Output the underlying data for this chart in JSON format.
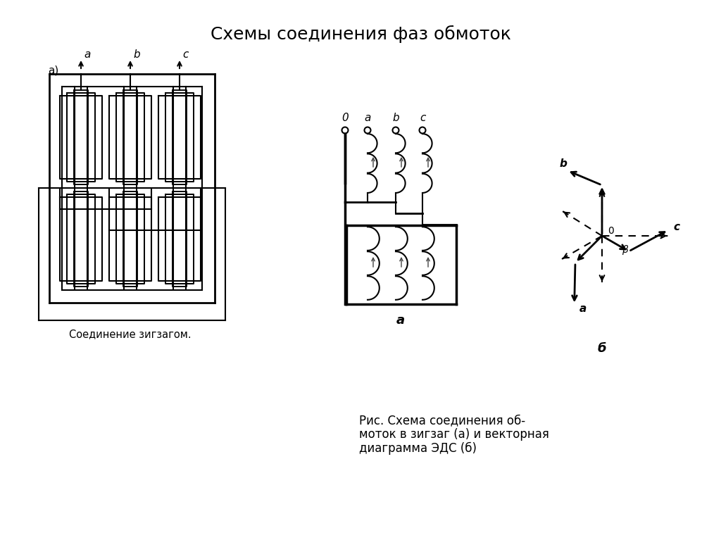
{
  "title": "Схемы соединения фаз обмоток",
  "title_fontsize": 18,
  "fig_caption_line1": "Рис. Схема соединения об-",
  "fig_caption_line2": "моток в зигзаг (а) и векторная",
  "fig_caption_line3": "диаграмма ЭДС (б)",
  "left_caption": "Соединение зигзагом.",
  "background_color": "#ffffff",
  "line_color": "#000000",
  "lw": 1.5
}
